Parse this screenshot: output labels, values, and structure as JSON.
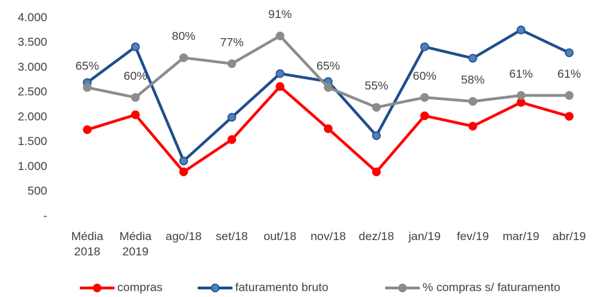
{
  "chart_data": {
    "type": "line",
    "categories": [
      "Média 2018",
      "Média 2019",
      "ago/18",
      "set/18",
      "out/18",
      "nov/18",
      "dez/18",
      "jan/19",
      "fev/19",
      "mar/19",
      "abr/19"
    ],
    "series": [
      {
        "name": "compras",
        "color": "#ff0000",
        "values": [
          1750,
          2050,
          900,
          1550,
          2620,
          1770,
          900,
          2030,
          1820,
          2300,
          2020
        ]
      },
      {
        "name": "faturamento bruto",
        "color": "#1f4e8c",
        "marker_color": "#4f81bd",
        "values": [
          2700,
          3420,
          1120,
          2000,
          2880,
          2720,
          1630,
          3420,
          3190,
          3760,
          3300
        ]
      },
      {
        "name": "% compras s/ faturamento",
        "color": "#8c8c8c",
        "axis": "y2",
        "values": [
          65,
          60,
          80,
          77,
          91,
          65,
          55,
          60,
          58,
          61,
          61
        ],
        "value_labels": [
          "65%",
          "60%",
          "80%",
          "77%",
          "91%",
          "65%",
          "55%",
          "60%",
          "58%",
          "61%",
          "61%"
        ]
      }
    ],
    "ylim": [
      0,
      4000
    ],
    "yticks": [
      {
        "value": 0,
        "label": "-"
      },
      500,
      {
        "value": 1000,
        "label": "1.000"
      },
      {
        "value": 1500,
        "label": "1.500"
      },
      {
        "value": 2000,
        "label": "2.000"
      },
      {
        "value": 2500,
        "label": "2.500"
      },
      {
        "value": 3000,
        "label": "3.000"
      },
      {
        "value": 3500,
        "label": "3.500"
      },
      {
        "value": 4000,
        "label": "4.000"
      }
    ],
    "y2lim": [
      0,
      100
    ],
    "grid": false,
    "legend": "bottom"
  }
}
